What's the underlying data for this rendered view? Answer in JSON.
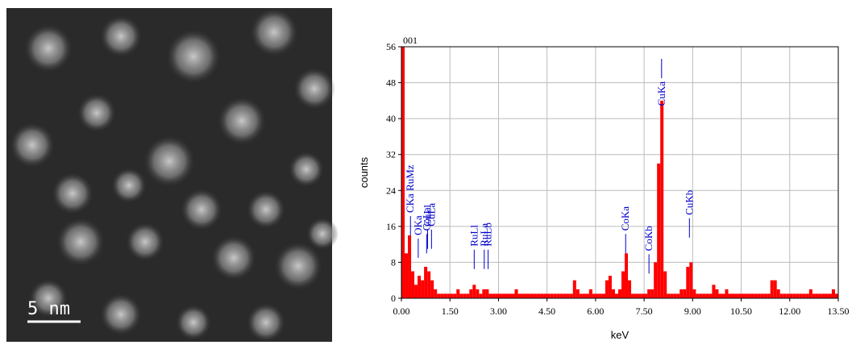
{
  "image": {
    "scale_bar": "5 nm"
  },
  "chart_data": {
    "type": "bar",
    "title": "001",
    "xlabel": "keV",
    "ylabel": "counts",
    "color": "#ff0000",
    "annotation_color": "#0000cc",
    "grid": true,
    "xlim": [
      0,
      13.5
    ],
    "ylim": [
      0,
      56
    ],
    "yticks": [
      0,
      8,
      16,
      24,
      32,
      40,
      48,
      56
    ],
    "xticks": [
      {
        "value": 0,
        "label": "0.00"
      },
      {
        "value": 1.5,
        "label": "1.50"
      },
      {
        "value": 3,
        "label": "3.00"
      },
      {
        "value": 4.5,
        "label": "4.50"
      },
      {
        "value": 6,
        "label": "6.00"
      },
      {
        "value": 7.5,
        "label": "7.50"
      },
      {
        "value": 9,
        "label": "9.00"
      },
      {
        "value": 10.5,
        "label": "10.50"
      },
      {
        "value": 12,
        "label": "12.00"
      },
      {
        "value": 13.5,
        "label": "13.50"
      }
    ],
    "x": [
      0.05,
      0.15,
      0.25,
      0.35,
      0.45,
      0.55,
      0.65,
      0.75,
      0.85,
      0.95,
      1.05,
      1.15,
      1.25,
      1.35,
      1.45,
      1.55,
      1.65,
      1.75,
      1.85,
      1.95,
      2.05,
      2.15,
      2.25,
      2.35,
      2.45,
      2.55,
      2.65,
      2.75,
      2.85,
      2.95,
      3.05,
      3.15,
      3.25,
      3.35,
      3.45,
      3.55,
      3.65,
      3.75,
      3.85,
      3.95,
      4.05,
      4.15,
      4.25,
      4.35,
      4.45,
      4.55,
      4.65,
      4.75,
      4.85,
      4.95,
      5.05,
      5.15,
      5.25,
      5.35,
      5.45,
      5.55,
      5.65,
      5.75,
      5.85,
      5.95,
      6.05,
      6.15,
      6.25,
      6.35,
      6.45,
      6.55,
      6.65,
      6.75,
      6.85,
      6.95,
      7.05,
      7.15,
      7.25,
      7.35,
      7.45,
      7.55,
      7.65,
      7.75,
      7.85,
      7.95,
      8.05,
      8.15,
      8.25,
      8.35,
      8.45,
      8.55,
      8.65,
      8.75,
      8.85,
      8.95,
      9.05,
      9.15,
      9.25,
      9.35,
      9.45,
      9.55,
      9.65,
      9.75,
      9.85,
      9.95,
      10.05,
      10.15,
      10.25,
      10.35,
      10.45,
      10.55,
      10.65,
      10.75,
      10.85,
      10.95,
      11.05,
      11.15,
      11.25,
      11.35,
      11.45,
      11.55,
      11.65,
      11.75,
      11.85,
      11.95,
      12.05,
      12.15,
      12.25,
      12.35,
      12.45,
      12.55,
      12.65,
      12.75,
      12.85,
      12.95,
      13.05,
      13.15,
      13.25,
      13.35,
      13.45
    ],
    "values": [
      56,
      10,
      14,
      6,
      3,
      5,
      4,
      7,
      6,
      4,
      2,
      1,
      1,
      1,
      1,
      1,
      1,
      2,
      1,
      1,
      1,
      2,
      3,
      2,
      1,
      2,
      2,
      1,
      1,
      1,
      1,
      1,
      1,
      1,
      1,
      2,
      1,
      1,
      1,
      1,
      1,
      1,
      1,
      1,
      1,
      1,
      1,
      1,
      1,
      1,
      1,
      1,
      1,
      4,
      2,
      1,
      1,
      1,
      2,
      1,
      1,
      1,
      1,
      4,
      5,
      2,
      1,
      2,
      6,
      10,
      4,
      1,
      1,
      1,
      1,
      1,
      2,
      2,
      8,
      30,
      44,
      6,
      1,
      1,
      1,
      1,
      2,
      2,
      7,
      8,
      2,
      1,
      1,
      1,
      1,
      1,
      3,
      2,
      1,
      1,
      2,
      1,
      1,
      1,
      1,
      1,
      1,
      1,
      1,
      1,
      1,
      1,
      1,
      1,
      4,
      4,
      2,
      1,
      1,
      1,
      1,
      1,
      1,
      1,
      1,
      1,
      2,
      1,
      1,
      1,
      1,
      1,
      1,
      2,
      1
    ],
    "annotations": [
      {
        "text": "CKa RuMz",
        "x": 0.28,
        "y": 14
      },
      {
        "text": "OKa",
        "x": 0.52,
        "y": 9
      },
      {
        "text": "CoLa",
        "x": 0.78,
        "y": 10
      },
      {
        "text": "CuLl",
        "x": 0.81,
        "y": 11
      },
      {
        "text": "CuLa",
        "x": 0.93,
        "y": 11
      },
      {
        "text": "RuLl",
        "x": 2.25,
        "y": 6.5
      },
      {
        "text": "RuLa",
        "x": 2.56,
        "y": 6.5
      },
      {
        "text": "RuLb",
        "x": 2.68,
        "y": 6.5
      },
      {
        "text": "CoKa",
        "x": 6.93,
        "y": 10
      },
      {
        "text": "CoKb",
        "x": 7.65,
        "y": 5.5
      },
      {
        "text": "CuKa",
        "x": 8.04,
        "y": 49
      },
      {
        "text": "CuKb",
        "x": 8.9,
        "y": 13.5
      }
    ]
  }
}
